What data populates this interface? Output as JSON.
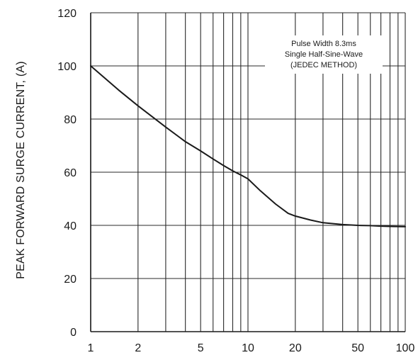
{
  "chart_data": {
    "type": "line",
    "title": "",
    "xlabel": "",
    "ylabel": "PEAK FORWARD SURGE CURRENT, (A)",
    "x_scale": "log",
    "xlim": [
      1,
      100
    ],
    "ylim": [
      0,
      120
    ],
    "x_ticks": [
      1,
      2,
      5,
      10,
      20,
      50,
      100
    ],
    "x_tick_labels": [
      "1",
      "2",
      "5",
      "10",
      "20",
      "50",
      "100"
    ],
    "y_ticks": [
      0,
      20,
      40,
      60,
      80,
      100,
      120
    ],
    "y_tick_labels": [
      "0",
      "20",
      "40",
      "60",
      "80",
      "100",
      "120"
    ],
    "grid": true,
    "annotation": [
      "Pulse Width 8.3ms",
      "Single Half-Sine-Wave",
      "(JEDEC METHOD)"
    ],
    "series": [
      {
        "x": [
          1,
          1.5,
          2,
          3,
          4,
          5,
          6,
          7,
          8,
          9,
          10,
          12,
          15,
          18,
          20,
          25,
          30,
          40,
          50,
          60,
          70,
          80,
          100
        ],
        "y": [
          100,
          91,
          85,
          77,
          71.5,
          68,
          65,
          62.5,
          60.5,
          59,
          57.5,
          53,
          48,
          44.5,
          43.5,
          42,
          41,
          40.3,
          40,
          39.9,
          39.7,
          39.6,
          39.5
        ]
      }
    ],
    "colors": {
      "line": "#1a1a1a",
      "grid": "#2a2a2a",
      "axis": "#1a1a1a",
      "note_bg": "#ffffff"
    }
  }
}
